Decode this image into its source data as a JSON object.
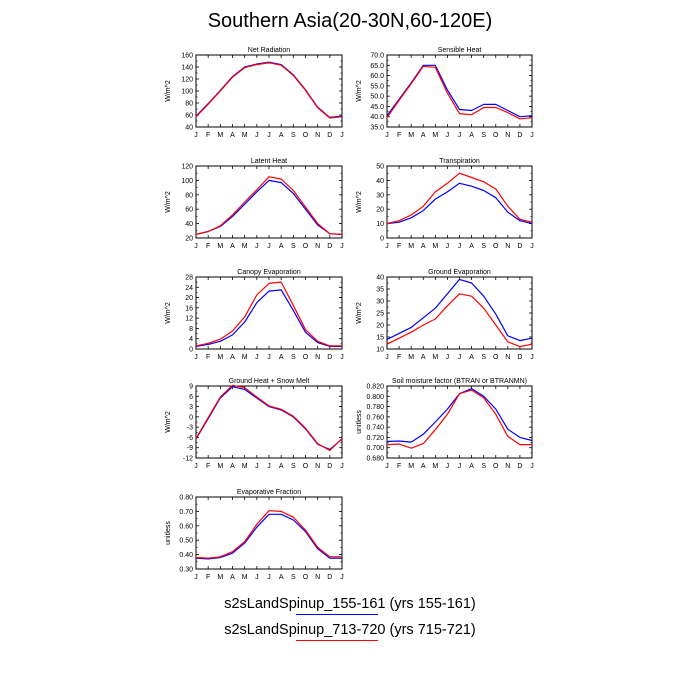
{
  "title": "Southern Asia(20-30N,60-120E)",
  "colors": {
    "run1": "#0000ff",
    "run2": "#ff0000"
  },
  "legend": [
    {
      "label": "s2sLandSpinup_155-161 (yrs 155-161)",
      "color": "#0000ff"
    },
    {
      "label": "s2sLandSpinup_713-720 (yrs 715-721)",
      "color": "#ff0000"
    }
  ],
  "chart_data": [
    {
      "type": "line",
      "title": "Net Radiation",
      "ylabel": "W/m^2",
      "categories": [
        "J",
        "F",
        "M",
        "A",
        "M",
        "J",
        "J",
        "A",
        "S",
        "O",
        "N",
        "D",
        "J"
      ],
      "ylim": [
        40,
        160
      ],
      "yticks": [
        "40",
        "60",
        "80",
        "100",
        "120",
        "140",
        "160"
      ],
      "series": [
        {
          "values": [
            58,
            79,
            101,
            124,
            140,
            145,
            148,
            144,
            127,
            102,
            73,
            56,
            58
          ]
        },
        {
          "values": [
            57,
            78,
            100,
            123,
            139,
            144,
            147,
            143,
            126,
            101,
            72,
            55,
            57
          ]
        }
      ]
    },
    {
      "type": "line",
      "title": "Sensible Heat",
      "ylabel": "W/m^2",
      "categories": [
        "J",
        "F",
        "M",
        "A",
        "M",
        "J",
        "J",
        "A",
        "S",
        "O",
        "N",
        "D",
        "J"
      ],
      "ylim": [
        35,
        70
      ],
      "yticks": [
        "35.0",
        "40.0",
        "45.0",
        "50.0",
        "55.0",
        "60.0",
        "65.0",
        "70.0"
      ],
      "series": [
        {
          "values": [
            40.5,
            48.5,
            56.5,
            65.0,
            65.0,
            53.0,
            43.5,
            43.0,
            46.0,
            46.0,
            43.0,
            40.0,
            40.5
          ]
        },
        {
          "values": [
            39.5,
            48.0,
            56.0,
            64.5,
            64.0,
            51.5,
            41.5,
            41.0,
            44.5,
            44.5,
            42.0,
            39.0,
            39.5
          ]
        }
      ]
    },
    {
      "type": "line",
      "title": "Latent Heat",
      "ylabel": "W/m^2",
      "categories": [
        "J",
        "F",
        "M",
        "A",
        "M",
        "J",
        "J",
        "A",
        "S",
        "O",
        "N",
        "D",
        "J"
      ],
      "ylim": [
        20,
        120
      ],
      "yticks": [
        "20",
        "40",
        "60",
        "80",
        "100",
        "120"
      ],
      "series": [
        {
          "values": [
            25,
            29,
            36,
            50,
            67,
            84,
            100,
            97,
            82,
            60,
            38,
            26,
            25
          ]
        },
        {
          "values": [
            25,
            29,
            37,
            52,
            70,
            87,
            105,
            102,
            86,
            63,
            40,
            26,
            25
          ]
        }
      ]
    },
    {
      "type": "line",
      "title": "Transpiration",
      "ylabel": "W/m^2",
      "categories": [
        "J",
        "F",
        "M",
        "A",
        "M",
        "J",
        "J",
        "A",
        "S",
        "O",
        "N",
        "D",
        "J"
      ],
      "ylim": [
        0,
        50
      ],
      "yticks": [
        "0",
        "10",
        "20",
        "30",
        "40",
        "50"
      ],
      "series": [
        {
          "values": [
            10,
            11,
            14,
            19,
            27,
            32,
            38,
            36,
            33,
            28,
            18,
            12,
            10
          ]
        },
        {
          "values": [
            10,
            12,
            16,
            22,
            32,
            38,
            45,
            42,
            39,
            34,
            22,
            13,
            11
          ]
        }
      ]
    },
    {
      "type": "line",
      "title": "Canopy Evaporation",
      "ylabel": "W/m^2",
      "categories": [
        "J",
        "F",
        "M",
        "A",
        "M",
        "J",
        "J",
        "A",
        "S",
        "O",
        "N",
        "D",
        "J"
      ],
      "ylim": [
        0,
        28
      ],
      "yticks": [
        "0",
        "4",
        "8",
        "12",
        "16",
        "20",
        "24",
        "28"
      ],
      "series": [
        {
          "values": [
            1,
            1.8,
            3,
            5.5,
            10.5,
            18,
            22.5,
            23,
            15,
            6.5,
            2.5,
            1,
            1
          ]
        },
        {
          "values": [
            1.2,
            2.2,
            3.8,
            7,
            12.5,
            21,
            25.5,
            26,
            17,
            7.5,
            3,
            1.2,
            1.2
          ]
        }
      ]
    },
    {
      "type": "line",
      "title": "Ground Evaporation",
      "ylabel": "W/m^2",
      "categories": [
        "J",
        "F",
        "M",
        "A",
        "M",
        "J",
        "J",
        "A",
        "S",
        "O",
        "N",
        "D",
        "J"
      ],
      "ylim": [
        10,
        40
      ],
      "yticks": [
        "10",
        "15",
        "20",
        "25",
        "30",
        "35",
        "40"
      ],
      "series": [
        {
          "values": [
            14,
            16.5,
            19,
            23,
            27,
            33,
            39,
            37.5,
            32,
            24.5,
            15.5,
            13.5,
            14.5
          ]
        },
        {
          "values": [
            12,
            14.5,
            17,
            20,
            22.5,
            28,
            33,
            32,
            27,
            20,
            13,
            11,
            12
          ]
        }
      ]
    },
    {
      "type": "line",
      "title": "Ground Heat + Snow Melt",
      "ylabel": "W/m^2",
      "categories": [
        "J",
        "F",
        "M",
        "A",
        "M",
        "J",
        "J",
        "A",
        "S",
        "O",
        "N",
        "D",
        "J"
      ],
      "ylim": [
        -12,
        9
      ],
      "yticks": [
        "-12",
        "-9",
        "-6",
        "-3",
        "0",
        "3",
        "6",
        "9"
      ],
      "series": [
        {
          "values": [
            -6.5,
            -0.5,
            5.5,
            8.8,
            8.0,
            5.5,
            3.0,
            2.0,
            0,
            -3.5,
            -8,
            -9.5,
            -6.5
          ]
        },
        {
          "values": [
            -6.3,
            -0.2,
            5.8,
            9.2,
            8.5,
            5.8,
            3.2,
            2.2,
            0.2,
            -3.3,
            -7.8,
            -9.8,
            -6.3
          ]
        }
      ]
    },
    {
      "type": "line",
      "title": "Soil moisture factor (BTRAN or BTRANMN)",
      "ylabel": "unitless",
      "categories": [
        "J",
        "F",
        "M",
        "A",
        "M",
        "J",
        "J",
        "A",
        "S",
        "O",
        "N",
        "D",
        "J"
      ],
      "ylim": [
        0.68,
        0.82
      ],
      "yticks": [
        "0.680",
        "0.700",
        "0.720",
        "0.740",
        "0.760",
        "0.780",
        "0.800",
        "0.820"
      ],
      "series": [
        {
          "values": [
            0.712,
            0.713,
            0.711,
            0.726,
            0.75,
            0.775,
            0.805,
            0.815,
            0.8,
            0.775,
            0.736,
            0.72,
            0.714
          ]
        },
        {
          "values": [
            0.706,
            0.707,
            0.699,
            0.708,
            0.735,
            0.765,
            0.805,
            0.812,
            0.797,
            0.765,
            0.722,
            0.706,
            0.706
          ]
        }
      ]
    },
    {
      "type": "line",
      "title": "Evaporative Fraction",
      "ylabel": "unitless",
      "categories": [
        "J",
        "F",
        "M",
        "A",
        "M",
        "J",
        "J",
        "A",
        "S",
        "O",
        "N",
        "D",
        "J"
      ],
      "ylim": [
        0.3,
        0.8
      ],
      "yticks": [
        "0.30",
        "0.40",
        "0.50",
        "0.60",
        "0.70",
        "0.80"
      ],
      "series": [
        {
          "values": [
            0.375,
            0.37,
            0.38,
            0.41,
            0.48,
            0.59,
            0.68,
            0.68,
            0.64,
            0.56,
            0.44,
            0.375,
            0.375
          ]
        },
        {
          "values": [
            0.38,
            0.375,
            0.385,
            0.42,
            0.49,
            0.61,
            0.705,
            0.7,
            0.66,
            0.57,
            0.45,
            0.385,
            0.385
          ]
        }
      ]
    }
  ]
}
